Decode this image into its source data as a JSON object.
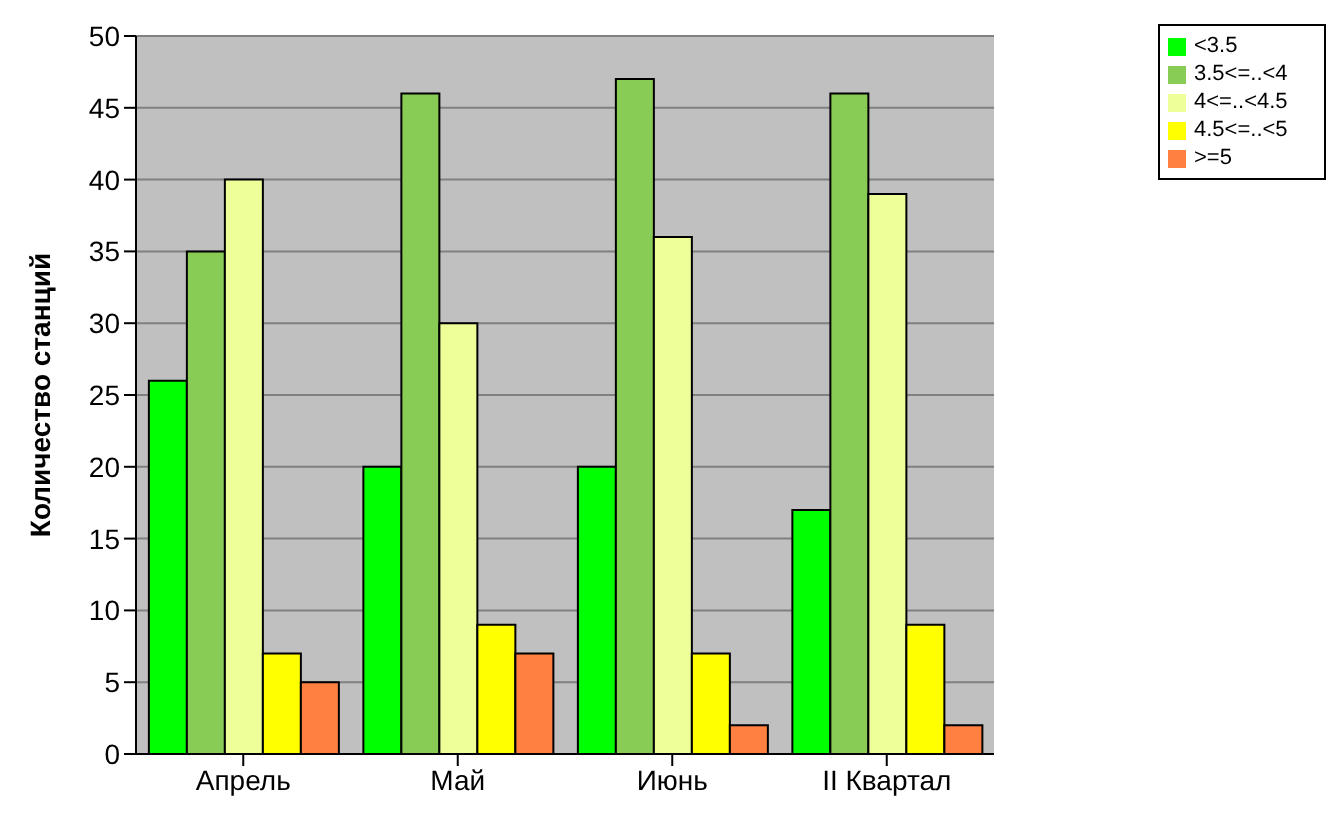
{
  "chart_data": {
    "type": "bar",
    "ylabel": "Количество станций",
    "categories": [
      "Апрель",
      "Май",
      "Июнь",
      "II Квартал"
    ],
    "series": [
      {
        "name": "<3.5",
        "color": "#00ff00",
        "values": [
          26,
          20,
          20,
          17
        ]
      },
      {
        "name": "3.5<=..<4",
        "color": "#88cc55",
        "values": [
          35,
          46,
          47,
          46
        ]
      },
      {
        "name": "4<=..<4.5",
        "color": "#eeff99",
        "values": [
          40,
          30,
          36,
          39
        ]
      },
      {
        "name": "4.5<=..<5",
        "color": "#ffff00",
        "values": [
          7,
          9,
          7,
          9
        ]
      },
      {
        "name": ">=5",
        "color": "#ff8040",
        "values": [
          5,
          7,
          2,
          2
        ]
      }
    ],
    "ylim": [
      0,
      50
    ],
    "yticks": [
      0,
      5,
      10,
      15,
      20,
      25,
      30,
      35,
      40,
      45,
      50
    ],
    "grid": "y",
    "legend": "top right"
  }
}
